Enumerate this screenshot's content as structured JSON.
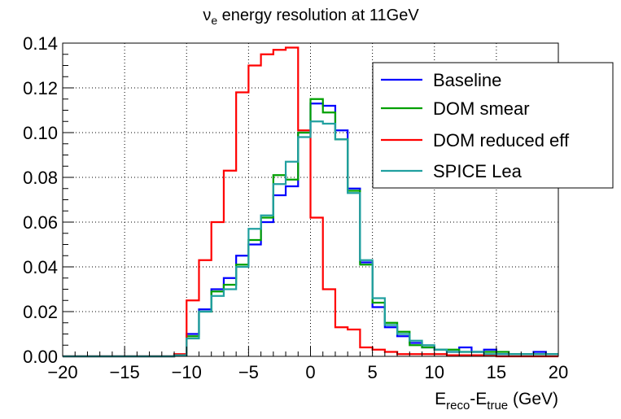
{
  "chart_data": {
    "type": "line",
    "step": true,
    "title_main": "ν",
    "title_sub": "e",
    "title_rest": " energy resolution at 11GeV",
    "xlabel_main_1": "E",
    "xlabel_sub_1": "reco",
    "xlabel_main_2": "-E",
    "xlabel_sub_2": "true",
    "xlabel_rest": " (GeV)",
    "xlim": [
      -20,
      20
    ],
    "ylim": [
      0,
      0.14
    ],
    "x_major_ticks": [
      -20,
      -15,
      -10,
      -5,
      0,
      5,
      10,
      15,
      20
    ],
    "x_tick_labels": [
      "−20",
      "−15",
      "−10",
      "−5",
      "0",
      "5",
      "10",
      "15",
      "20"
    ],
    "y_major_ticks": [
      0,
      0.02,
      0.04,
      0.06,
      0.08,
      0.1,
      0.12,
      0.14
    ],
    "y_tick_labels": [
      "0.00",
      "0.02",
      "0.04",
      "0.06",
      "0.08",
      "0.10",
      "0.12",
      "0.14"
    ],
    "grid": true,
    "legend_position": "top-right",
    "bin_edges": [
      -20,
      -19,
      -18,
      -17,
      -16,
      -15,
      -14,
      -13,
      -12,
      -11,
      -10,
      -9,
      -8,
      -7,
      -6,
      -5,
      -4,
      -3,
      -2,
      -1,
      0,
      1,
      2,
      3,
      4,
      5,
      6,
      7,
      8,
      9,
      10,
      11,
      12,
      13,
      14,
      15,
      16,
      17,
      18,
      19,
      20
    ],
    "series": [
      {
        "name": "Baseline",
        "color": "#0000ff",
        "values": [
          0,
          0,
          0,
          0,
          0,
          0,
          0,
          0,
          0,
          0.0005,
          0.01,
          0.021,
          0.03,
          0.035,
          0.045,
          0.05,
          0.06,
          0.072,
          0.076,
          0.1,
          0.113,
          0.112,
          0.101,
          0.075,
          0.042,
          0.022,
          0.013,
          0.009,
          0.006,
          0.004,
          0.003,
          0.002,
          0.004,
          0.002,
          0.003,
          0.001,
          0.001,
          0.001,
          0.002,
          0.001
        ]
      },
      {
        "name": "DOM smear",
        "color": "#00a000",
        "values": [
          0,
          0,
          0,
          0,
          0,
          0,
          0,
          0,
          0,
          0.0005,
          0.009,
          0.02,
          0.029,
          0.032,
          0.041,
          0.052,
          0.062,
          0.081,
          0.079,
          0.1,
          0.115,
          0.109,
          0.097,
          0.074,
          0.041,
          0.024,
          0.015,
          0.011,
          0.005,
          0.004,
          0.003,
          0.003,
          0.002,
          0.002,
          0.002,
          0.002,
          0.001,
          0.001,
          0.001,
          0.001
        ]
      },
      {
        "name": "DOM reduced eff",
        "color": "#ff0000",
        "values": [
          0,
          0,
          0,
          0,
          0,
          0,
          0,
          0,
          0,
          0.001,
          0.025,
          0.043,
          0.06,
          0.083,
          0.118,
          0.13,
          0.135,
          0.137,
          0.138,
          0.101,
          0.062,
          0.03,
          0.013,
          0.012,
          0.004,
          0.003,
          0.002,
          0.001,
          0.001,
          0.001,
          0.001,
          0.0005,
          0.0005,
          0.0005,
          0.0005,
          0,
          0,
          0,
          0,
          0
        ]
      },
      {
        "name": "SPICE Lea",
        "color": "#20a0a0",
        "values": [
          0,
          0,
          0,
          0,
          0,
          0,
          0,
          0,
          0,
          0.0005,
          0.008,
          0.02,
          0.027,
          0.03,
          0.04,
          0.057,
          0.063,
          0.077,
          0.087,
          0.098,
          0.105,
          0.104,
          0.097,
          0.073,
          0.043,
          0.026,
          0.014,
          0.01,
          0.007,
          0.005,
          0.003,
          0.002,
          0.002,
          0.002,
          0.001,
          0.001,
          0.001,
          0.001,
          0.001,
          0.001
        ]
      }
    ]
  }
}
